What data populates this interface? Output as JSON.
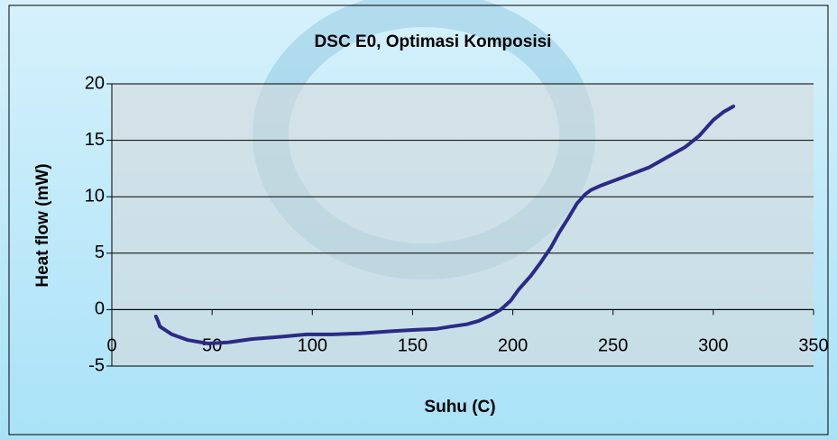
{
  "chart_data": {
    "type": "line",
    "title": "DSC E0, Optimasi Komposisi",
    "x_label": "Suhu (C)",
    "y_label": "Heat flow (mW)",
    "x": [
      22,
      23,
      24,
      30,
      38,
      48,
      58,
      70,
      85,
      97,
      110,
      124,
      140,
      151,
      162,
      169,
      177,
      183,
      189,
      194,
      199,
      203,
      209,
      214,
      219,
      223,
      228,
      232,
      236,
      239,
      244,
      250,
      259,
      268,
      277,
      286,
      293,
      300,
      305,
      310
    ],
    "values": [
      -0.6,
      -1.0,
      -1.5,
      -2.2,
      -2.7,
      -3.0,
      -2.9,
      -2.6,
      -2.4,
      -2.2,
      -2.2,
      -2.1,
      -1.9,
      -1.8,
      -1.7,
      -1.5,
      -1.3,
      -1.0,
      -0.5,
      0,
      0.8,
      1.8,
      3.0,
      4.2,
      5.5,
      6.8,
      8.2,
      9.4,
      10.2,
      10.6,
      11.0,
      11.4,
      12.0,
      12.6,
      13.5,
      14.4,
      15.4,
      16.8,
      17.5,
      18.0
    ],
    "color": "#2b2b86",
    "xlim": [
      0,
      350
    ],
    "xticks": [
      0,
      50,
      100,
      150,
      200,
      250,
      300,
      350
    ],
    "ylim": [
      -5,
      20
    ],
    "yticks": [
      -5,
      0,
      5,
      10,
      15,
      20
    ],
    "grid": true
  }
}
